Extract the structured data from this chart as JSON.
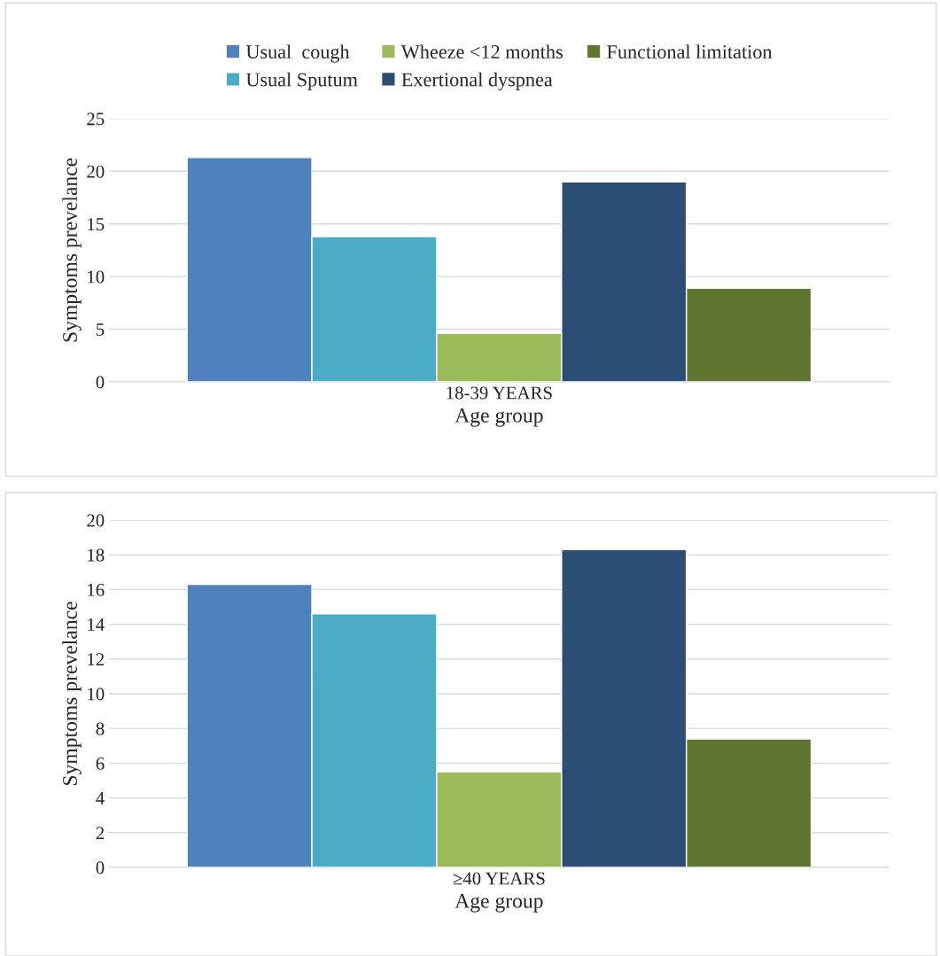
{
  "chart_data": [
    {
      "type": "bar",
      "categories": [
        "18-39 YEARS"
      ],
      "xlabel": "Age group",
      "ylabel": "Symptoms prevelance",
      "ylim": [
        0,
        25
      ],
      "yticks": [
        0,
        5,
        10,
        15,
        20,
        25
      ],
      "grid": "y",
      "legend": "top",
      "series": [
        {
          "name": "Usual  cough",
          "color": "#4f81bd",
          "values": [
            21.3
          ]
        },
        {
          "name": "Usual Sputum",
          "color": "#4bacc6",
          "values": [
            13.8
          ]
        },
        {
          "name": "Wheeze <12 months",
          "color": "#9bbb59",
          "values": [
            4.6
          ]
        },
        {
          "name": "Exertional dyspnea",
          "color": "#2c4d75",
          "values": [
            19.0
          ]
        },
        {
          "name": "Functional limitation",
          "color": "#5f7530",
          "values": [
            8.9
          ]
        }
      ]
    },
    {
      "type": "bar",
      "categories": [
        "≥40 YEARS"
      ],
      "xlabel": "Age group",
      "ylabel": "Symptoms prevelance",
      "ylim": [
        0,
        20
      ],
      "yticks": [
        0,
        2,
        4,
        6,
        8,
        10,
        12,
        14,
        16,
        18,
        20
      ],
      "grid": "y",
      "series": [
        {
          "color": "#4f81bd",
          "values": [
            16.3
          ]
        },
        {
          "color": "#4bacc6",
          "values": [
            14.6
          ]
        },
        {
          "color": "#9bbb59",
          "values": [
            5.5
          ]
        },
        {
          "color": "#2c4d75",
          "values": [
            18.3
          ]
        },
        {
          "color": "#5f7530",
          "values": [
            7.4
          ]
        }
      ]
    }
  ]
}
